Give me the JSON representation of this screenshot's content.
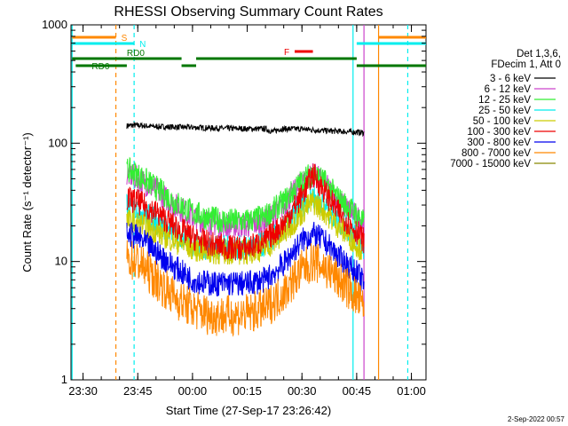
{
  "chart_data": {
    "type": "line",
    "title": "RHESSI Observing Summary Count Rates",
    "xlabel": "Start Time (27-Sep-17 23:26:42)",
    "ylabel": "Count Rate (s⁻¹ detector⁻¹)",
    "xlim": [
      "23:26:42",
      "01:04:00"
    ],
    "ylim": [
      1,
      1000
    ],
    "yscale": "log",
    "x_ticks": [
      "23:30",
      "23:45",
      "00:00",
      "00:15",
      "00:30",
      "00:45",
      "01:00"
    ],
    "y_ticks": [
      "1",
      "10",
      "100",
      "1000"
    ],
    "legend_header": [
      "Det 1,3,6,",
      "FDecim 1, Att 0"
    ],
    "legend_position": "right",
    "series": [
      {
        "name": "3 - 6 keV",
        "color": "#000000",
        "x": [
          "23:42",
          "23:44",
          "23:50",
          "00:00",
          "00:10",
          "00:20",
          "00:22",
          "00:24",
          "00:30",
          "00:35",
          "00:40",
          "00:45",
          "00:47"
        ],
        "y": [
          140,
          142,
          138,
          136,
          133,
          132,
          125,
          132,
          132,
          128,
          126,
          124,
          122
        ]
      },
      {
        "name": "6 - 12 keV",
        "color": "#cc44cc",
        "x": [
          "23:42",
          "23:45",
          "23:50",
          "23:55",
          "00:00",
          "00:05",
          "00:10",
          "00:15",
          "00:20",
          "00:25",
          "00:30",
          "00:33",
          "00:36",
          "00:40",
          "00:45",
          "00:47"
        ],
        "y": [
          55,
          50,
          40,
          30,
          24,
          21,
          20,
          20,
          22,
          30,
          46,
          55,
          46,
          32,
          24,
          20
        ]
      },
      {
        "name": "12 - 25 keV",
        "color": "#33ee33",
        "x": [
          "23:42",
          "23:45",
          "23:50",
          "23:55",
          "00:00",
          "00:05",
          "00:10",
          "00:15",
          "00:20",
          "00:25",
          "00:30",
          "00:33",
          "00:36",
          "00:40",
          "00:45",
          "00:47"
        ],
        "y": [
          60,
          54,
          42,
          32,
          26,
          23,
          22,
          22,
          24,
          32,
          48,
          56,
          48,
          34,
          25,
          21
        ]
      },
      {
        "name": "25 - 50 keV",
        "color": "#00eeee",
        "x": [
          "23:42",
          "23:45",
          "23:50",
          "23:55",
          "00:00",
          "00:05",
          "00:10",
          "00:15",
          "00:20",
          "00:25",
          "00:30",
          "00:33",
          "00:36",
          "00:40",
          "00:45",
          "00:47"
        ],
        "y": [
          30,
          28,
          22,
          17,
          14,
          13,
          13,
          13,
          14,
          19,
          30,
          36,
          30,
          22,
          16,
          13
        ]
      },
      {
        "name": "50 - 100 keV",
        "color": "#cccc00",
        "x": [
          "23:42",
          "23:45",
          "23:50",
          "23:55",
          "00:00",
          "00:05",
          "00:10",
          "00:15",
          "00:20",
          "00:25",
          "00:30",
          "00:33",
          "00:36",
          "00:40",
          "00:45",
          "00:47"
        ],
        "y": [
          22,
          21,
          18,
          15,
          13,
          12,
          12,
          12,
          13,
          17,
          26,
          32,
          27,
          20,
          14,
          12
        ]
      },
      {
        "name": "100 - 300 keV",
        "color": "#ee0000",
        "x": [
          "23:42",
          "23:45",
          "23:50",
          "23:55",
          "00:00",
          "00:05",
          "00:10",
          "00:15",
          "00:20",
          "00:25",
          "00:30",
          "00:33",
          "00:36",
          "00:40",
          "00:45",
          "00:47"
        ],
        "y": [
          34,
          32,
          26,
          20,
          16,
          14,
          13,
          13,
          15,
          21,
          36,
          55,
          40,
          26,
          18,
          15
        ]
      },
      {
        "name": "300 - 800 keV",
        "color": "#0000ee",
        "x": [
          "23:42",
          "23:45",
          "23:50",
          "23:55",
          "00:00",
          "00:05",
          "00:10",
          "00:15",
          "00:20",
          "00:25",
          "00:30",
          "00:33",
          "00:36",
          "00:40",
          "00:45",
          "00:47"
        ],
        "y": [
          17,
          16,
          12,
          9,
          7,
          6.5,
          6.5,
          6.5,
          7,
          9.5,
          15,
          17,
          15,
          11,
          8,
          6.5
        ]
      },
      {
        "name": "800 - 7000 keV",
        "color": "#ff8800",
        "x": [
          "23:42",
          "23:45",
          "23:50",
          "23:55",
          "00:00",
          "00:05",
          "00:10",
          "00:15",
          "00:20",
          "00:25",
          "00:30",
          "00:33",
          "00:36",
          "00:40",
          "00:45",
          "00:47"
        ],
        "y": [
          10.5,
          10,
          7,
          5,
          4,
          3.5,
          3.5,
          3.6,
          4,
          5.5,
          8.5,
          10,
          9,
          7,
          5,
          4
        ]
      },
      {
        "name": "7000 - 15000 keV",
        "color": "#888800",
        "x": [],
        "y": []
      }
    ],
    "flags": [
      {
        "label": "S",
        "color": "#ff8800",
        "segments": [
          [
            "23:27",
            "23:39"
          ]
        ],
        "row": 1
      },
      {
        "label": "N",
        "color": "#00eeee",
        "segments": [
          [
            "23:27",
            "23:44"
          ],
          [
            "00:45",
            "01:04"
          ]
        ],
        "row": 2
      },
      {
        "label": "RD0",
        "color": "#007700",
        "segments": [
          [
            "23:27",
            "23:57"
          ],
          [
            "00:01",
            "00:45"
          ]
        ],
        "row": 3
      },
      {
        "label": "RD6",
        "color": "#007700",
        "segments": [
          [
            "23:28",
            "23:42"
          ],
          [
            "23:57",
            "00:01"
          ],
          [
            "00:45",
            "01:04"
          ]
        ],
        "row": 4
      },
      {
        "label": "F",
        "color": "#ee0000",
        "segments": [
          [
            "00:28",
            "00:33"
          ]
        ],
        "row": 0
      },
      {
        "label": "",
        "color": "#ff8800",
        "segments": [
          [
            "00:51",
            "01:04"
          ]
        ],
        "row": 1
      }
    ],
    "vlines": [
      {
        "x": "23:27",
        "color": "#00eeee",
        "style": "solid"
      },
      {
        "x": "23:39",
        "color": "#ff8800",
        "style": "dashed"
      },
      {
        "x": "23:44",
        "color": "#00eeee",
        "style": "dashed"
      },
      {
        "x": "00:44",
        "color": "#00eeee",
        "style": "solid"
      },
      {
        "x": "00:47",
        "color": "#cc44cc",
        "style": "solid"
      },
      {
        "x": "00:51",
        "color": "#ff8800",
        "style": "solid"
      },
      {
        "x": "00:59",
        "color": "#00eeee",
        "style": "dashed"
      }
    ],
    "grid": false
  },
  "stamp": "2-Sep-2022 00:57"
}
